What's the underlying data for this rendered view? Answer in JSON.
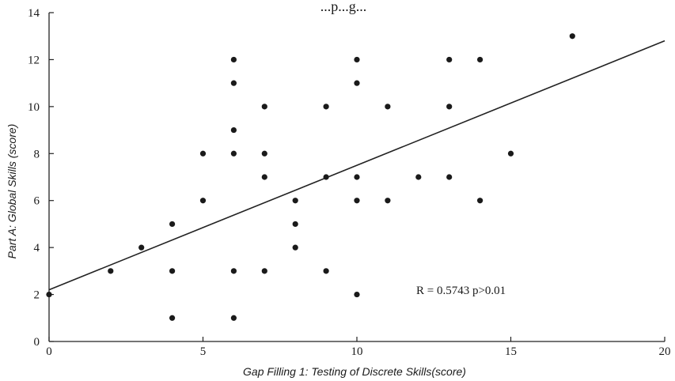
{
  "chart_data": {
    "type": "scatter",
    "title_fragment": "...p...g...",
    "xlabel": "Gap Filling 1: Testing of Discrete Skills(score)",
    "ylabel": "Part A: Global Skills (score)",
    "xlim": [
      0,
      20
    ],
    "ylim": [
      0,
      14
    ],
    "xticks": [
      0,
      5,
      10,
      15,
      20
    ],
    "yticks": [
      0,
      2,
      4,
      6,
      8,
      10,
      12,
      14
    ],
    "grid": false,
    "annotation": "R = 0.5743  p>0.01",
    "trendline": {
      "x": [
        0,
        20
      ],
      "y": [
        2.2,
        12.8
      ]
    },
    "points": [
      {
        "x": 0,
        "y": 2
      },
      {
        "x": 2,
        "y": 3
      },
      {
        "x": 3,
        "y": 4
      },
      {
        "x": 4,
        "y": 5
      },
      {
        "x": 4,
        "y": 3
      },
      {
        "x": 4,
        "y": 1
      },
      {
        "x": 5,
        "y": 8
      },
      {
        "x": 5,
        "y": 6
      },
      {
        "x": 6,
        "y": 12
      },
      {
        "x": 6,
        "y": 11
      },
      {
        "x": 6,
        "y": 9
      },
      {
        "x": 6,
        "y": 8
      },
      {
        "x": 6,
        "y": 3
      },
      {
        "x": 6,
        "y": 1
      },
      {
        "x": 7,
        "y": 10
      },
      {
        "x": 7,
        "y": 8
      },
      {
        "x": 7,
        "y": 7
      },
      {
        "x": 7,
        "y": 3
      },
      {
        "x": 8,
        "y": 6
      },
      {
        "x": 8,
        "y": 5
      },
      {
        "x": 8,
        "y": 4
      },
      {
        "x": 9,
        "y": 10
      },
      {
        "x": 9,
        "y": 7
      },
      {
        "x": 9,
        "y": 3
      },
      {
        "x": 10,
        "y": 12
      },
      {
        "x": 10,
        "y": 11
      },
      {
        "x": 10,
        "y": 7
      },
      {
        "x": 10,
        "y": 6
      },
      {
        "x": 10,
        "y": 2
      },
      {
        "x": 11,
        "y": 10
      },
      {
        "x": 11,
        "y": 6
      },
      {
        "x": 12,
        "y": 7
      },
      {
        "x": 13,
        "y": 12
      },
      {
        "x": 13,
        "y": 10
      },
      {
        "x": 13,
        "y": 7
      },
      {
        "x": 14,
        "y": 12
      },
      {
        "x": 14,
        "y": 6
      },
      {
        "x": 15,
        "y": 8
      },
      {
        "x": 17,
        "y": 13
      }
    ]
  }
}
